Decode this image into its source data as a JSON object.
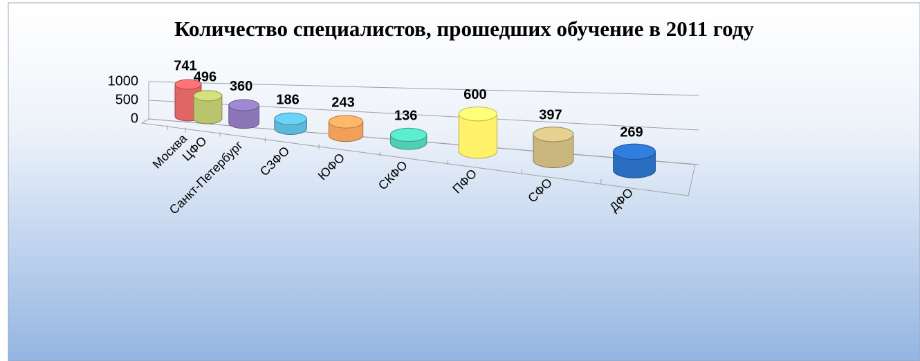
{
  "chart_data": {
    "type": "bar3d",
    "title": "Количество специалистов, прошедших обучение в 2011 году",
    "categories": [
      "Москва",
      "ЦФО",
      "Санкт-Петербург",
      "СЗФО",
      "ЮФО",
      "СКФО",
      "ПФО",
      "СФО",
      "ДФО"
    ],
    "values": [
      741,
      496,
      360,
      186,
      243,
      136,
      600,
      397,
      269
    ],
    "colors": [
      "#e06666",
      "#b9c46c",
      "#8c76b8",
      "#5bb8d8",
      "#f0a05a",
      "#4fcfb5",
      "#fff26a",
      "#c9b67c",
      "#2a6ec2"
    ],
    "ylim": [
      0,
      1000
    ],
    "yticks": [
      0,
      500,
      1000
    ],
    "grid": true
  }
}
